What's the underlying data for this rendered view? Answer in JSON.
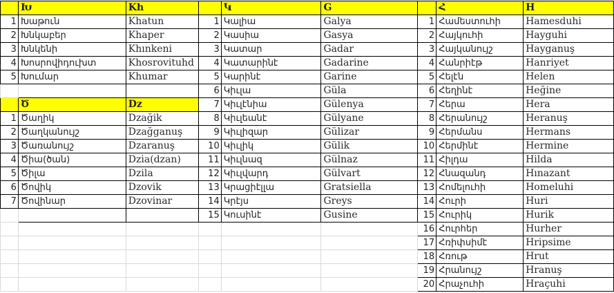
{
  "colors": {
    "header_fill": "#ffff00",
    "border": "#000000",
    "gridline": "#d9d9d9"
  },
  "tables": {
    "kh": {
      "header_hy": "Խ",
      "header_lat": "Kh",
      "rows": [
        {
          "n": "1",
          "hy": "Խաթուն",
          "lat": "Khatun"
        },
        {
          "n": "2",
          "hy": "Խնկաբեր",
          "lat": "Khaper"
        },
        {
          "n": "3",
          "hy": "Խնկենի",
          "lat": "Khınkeni"
        },
        {
          "n": "4",
          "hy": "Խոսրովիդուխտ",
          "lat": "Khosrovituhd"
        },
        {
          "n": "5",
          "hy": "Խումար",
          "lat": "Khumar"
        }
      ]
    },
    "dz": {
      "header_hy": "Ծ",
      "header_lat": "Dz",
      "rows": [
        {
          "n": "1",
          "hy": "Ծաղիկ",
          "lat": "Dzağik"
        },
        {
          "n": "2",
          "hy": "Ծաղկանույշ",
          "lat": "Dzağganuş"
        },
        {
          "n": "3",
          "hy": "Ծառանույշ",
          "lat": "Dzaranuş"
        },
        {
          "n": "4",
          "hy": "Ծիա(ծան)",
          "lat": "Dzia(dzan)"
        },
        {
          "n": "5",
          "hy": "Ծիլա",
          "lat": "Dzila"
        },
        {
          "n": "6",
          "hy": "Ծովիկ",
          "lat": "Dzovik"
        },
        {
          "n": "7",
          "hy": "Ծովինար",
          "lat": "Dzovinar"
        }
      ]
    },
    "g": {
      "header_hy": "Կ",
      "header_lat": "G",
      "rows": [
        {
          "n": "1",
          "hy": "Կալիա",
          "lat": "Galya"
        },
        {
          "n": "2",
          "hy": "Կասիա",
          "lat": "Gasya"
        },
        {
          "n": "3",
          "hy": "Կատար",
          "lat": "Gadar"
        },
        {
          "n": "4",
          "hy": "Կատարինէ",
          "lat": "Gadarine"
        },
        {
          "n": "5",
          "hy": "Կարինէ",
          "lat": "Garine"
        },
        {
          "n": "6",
          "hy": "Կիւլա",
          "lat": "Güla"
        },
        {
          "n": "7",
          "hy": "Կիւլէնիա",
          "lat": "Gülenya"
        },
        {
          "n": "8",
          "hy": "Կիւլեանէ",
          "lat": "Gülyane"
        },
        {
          "n": "9",
          "hy": "Կիւլիզար",
          "lat": "Gülizar"
        },
        {
          "n": "10",
          "hy": "Կիւլիկ",
          "lat": "Gülik"
        },
        {
          "n": "11",
          "hy": "Կիւլնազ",
          "lat": "Gülnaz"
        },
        {
          "n": "12",
          "hy": "Կիւլվարդ",
          "lat": "Gülvart"
        },
        {
          "n": "13",
          "hy": "Կրացիէլլա",
          "lat": "Gratsiella"
        },
        {
          "n": "14",
          "hy": "Կրէյս",
          "lat": "Greys"
        },
        {
          "n": "15",
          "hy": "Կուսինէ",
          "lat": "Gusine"
        }
      ]
    },
    "h": {
      "header_hy": "Հ",
      "header_lat": "H",
      "rows": [
        {
          "n": "1",
          "hy": "Համեստուհի",
          "lat": "Hamesduhi"
        },
        {
          "n": "2",
          "hy": "Հայկուհի",
          "lat": "Hayguhi"
        },
        {
          "n": "3",
          "hy": "Հայկանույշ",
          "lat": "Hayganuş"
        },
        {
          "n": "4",
          "hy": "Հանրիէթ",
          "lat": "Hanriyet"
        },
        {
          "n": "5",
          "hy": "Հելէն",
          "lat": "Helen"
        },
        {
          "n": "6",
          "hy": "Հեղինէ",
          "lat": "Heğine"
        },
        {
          "n": "7",
          "hy": "Հերա",
          "lat": "Hera"
        },
        {
          "n": "8",
          "hy": "Հերանույշ",
          "lat": "Heranuş"
        },
        {
          "n": "9",
          "hy": "Հերմանս",
          "lat": "Hermans"
        },
        {
          "n": "10",
          "hy": "Հերմինէ",
          "lat": "Hermine"
        },
        {
          "n": "11",
          "hy": "Հիլդա",
          "lat": "Hilda"
        },
        {
          "n": "12",
          "hy": "Հնազանդ",
          "lat": "Hınazant"
        },
        {
          "n": "13",
          "hy": "Հոմելուհի",
          "lat": "Homeluhi"
        },
        {
          "n": "14",
          "hy": "Հուրի",
          "lat": "Huri"
        },
        {
          "n": "15",
          "hy": "Հուրիկ",
          "lat": "Hurik"
        },
        {
          "n": "16",
          "hy": "Հուրհեր",
          "lat": "Hurher"
        },
        {
          "n": "17",
          "hy": "Հռիփսիմէ",
          "lat": "Hripsime"
        },
        {
          "n": "18",
          "hy": "Հռութ",
          "lat": "Hrut"
        },
        {
          "n": "19",
          "hy": "Հրանույշ",
          "lat": "Hranuş"
        },
        {
          "n": "20",
          "hy": "Հրաչուհի",
          "lat": "Hraçuhi"
        }
      ]
    }
  }
}
